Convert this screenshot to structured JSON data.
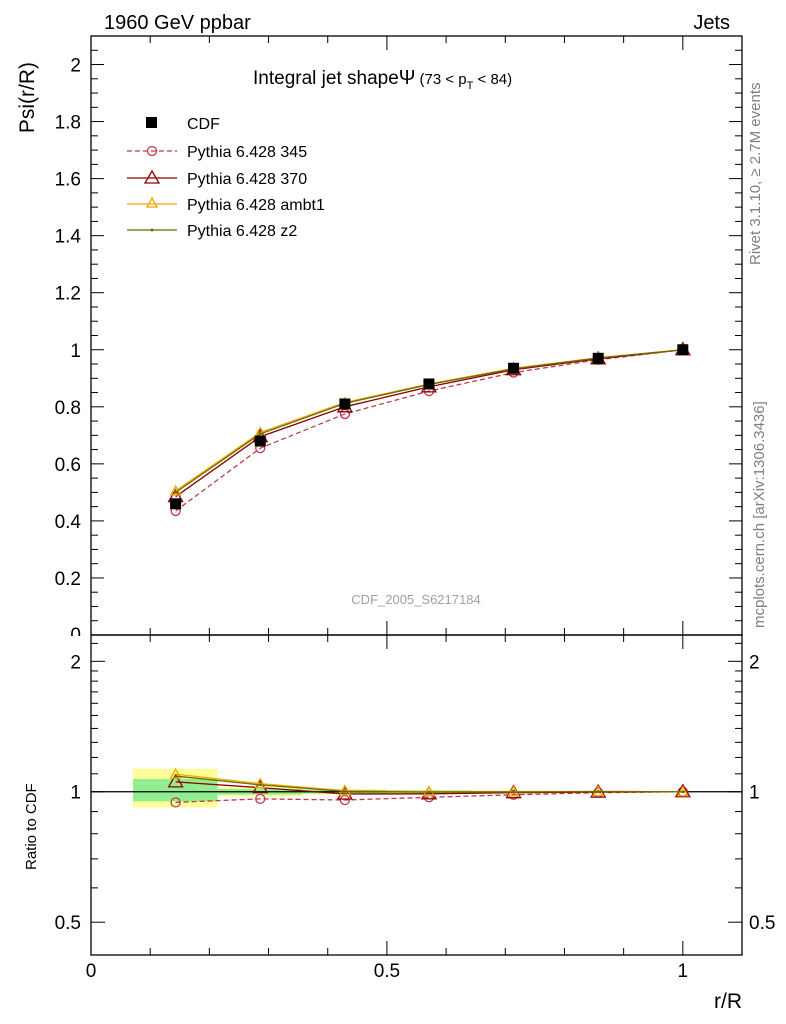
{
  "header": {
    "left": "1960 GeV ppbar",
    "right": "Jets"
  },
  "side_labels": {
    "rivet": "Rivet 3.1.10, ≥ 2.7M events",
    "mcplots": "mcplots.cern.ch [arXiv:1306.3436]"
  },
  "watermark": "CDF_2005_S6217184",
  "colors": {
    "cdf": "#000000",
    "p345": "#c0394b",
    "p370": "#8b0000",
    "ambt1": "#f0a800",
    "z2": "#6b6b00",
    "band_green": "#90ee90",
    "band_yellow": "#ffff99"
  },
  "chart_data": [
    {
      "type": "line",
      "title_main": "Integral jet shape",
      "title_symbol": "Ψ",
      "title_range": "(73 < p",
      "title_sub": "T",
      "title_range_end": " < 84)",
      "ylabel": "Psi(r/R)",
      "xlim": [
        0,
        1.1
      ],
      "ylim": [
        0,
        2.1
      ],
      "yticks": [
        0.2,
        0.4,
        0.6,
        0.8,
        1,
        1.2,
        1.4,
        1.6,
        1.8,
        2
      ],
      "ytick_labels": [
        "0.2",
        "0.4",
        "0.6",
        "0.8",
        "1",
        "1.2",
        "1.4",
        "1.6",
        "1.8",
        "2"
      ],
      "ytick_cut": "0",
      "x": [
        0.143,
        0.286,
        0.429,
        0.571,
        0.714,
        0.857,
        1.0
      ],
      "series": [
        {
          "name": "CDF",
          "values": [
            0.46,
            0.68,
            0.81,
            0.88,
            0.935,
            0.97,
            1.0
          ]
        },
        {
          "name": "Pythia 6.428 345",
          "values": [
            0.435,
            0.655,
            0.775,
            0.855,
            0.92,
            0.965,
            1.0
          ]
        },
        {
          "name": "Pythia 6.428 370",
          "values": [
            0.485,
            0.695,
            0.8,
            0.87,
            0.93,
            0.968,
            1.0
          ]
        },
        {
          "name": "Pythia 6.428 ambt1",
          "values": [
            0.505,
            0.71,
            0.815,
            0.88,
            0.935,
            0.972,
            1.0
          ]
        },
        {
          "name": "Pythia 6.428 z2",
          "values": [
            0.5,
            0.705,
            0.812,
            0.878,
            0.933,
            0.971,
            1.0
          ]
        }
      ]
    },
    {
      "type": "line",
      "ylabel": "Ratio to CDF",
      "xlabel": "r/R",
      "xlim": [
        0,
        1.1
      ],
      "ylim": [
        0.42,
        2.3
      ],
      "scale": "log",
      "yticks": [
        0.5,
        1,
        2
      ],
      "ytick_labels": [
        "0.5",
        "1",
        "2"
      ],
      "xticks": [
        0,
        0.5,
        1
      ],
      "xtick_labels": [
        "0",
        "0.5",
        "1"
      ],
      "x": [
        0.143,
        0.286,
        0.429,
        0.571,
        0.714,
        0.857,
        1.0
      ],
      "bands": {
        "x": [
          [
            0.071,
            0.214
          ],
          [
            0.214,
            0.357
          ],
          [
            0.357,
            0.5
          ],
          [
            0.5,
            0.643
          ],
          [
            0.643,
            0.786
          ],
          [
            0.786,
            0.929
          ],
          [
            0.929,
            1.071
          ]
        ],
        "green": [
          [
            0.95,
            1.07
          ],
          [
            0.985,
            1.015
          ],
          [
            0.99,
            1.01
          ],
          [
            0.993,
            1.007
          ],
          [
            0.995,
            1.005
          ],
          [
            0.997,
            1.003
          ],
          [
            0.999,
            1.001
          ]
        ],
        "yellow": [
          [
            0.92,
            1.13
          ],
          [
            0.975,
            1.025
          ],
          [
            0.985,
            1.015
          ],
          [
            0.99,
            1.01
          ],
          [
            0.993,
            1.007
          ],
          [
            0.996,
            1.004
          ],
          [
            0.999,
            1.001
          ]
        ]
      },
      "series": [
        {
          "name": "Pythia 6.428 345",
          "values": [
            0.945,
            0.963,
            0.957,
            0.971,
            0.984,
            0.995,
            1.0
          ]
        },
        {
          "name": "Pythia 6.428 370",
          "values": [
            1.054,
            1.022,
            0.988,
            0.989,
            0.995,
            0.998,
            1.0
          ]
        },
        {
          "name": "Pythia 6.428 ambt1",
          "values": [
            1.098,
            1.044,
            1.006,
            1.0,
            1.0,
            1.002,
            1.0
          ]
        },
        {
          "name": "Pythia 6.428 z2",
          "values": [
            1.087,
            1.037,
            1.002,
            0.998,
            0.998,
            1.001,
            1.0
          ]
        }
      ]
    }
  ]
}
